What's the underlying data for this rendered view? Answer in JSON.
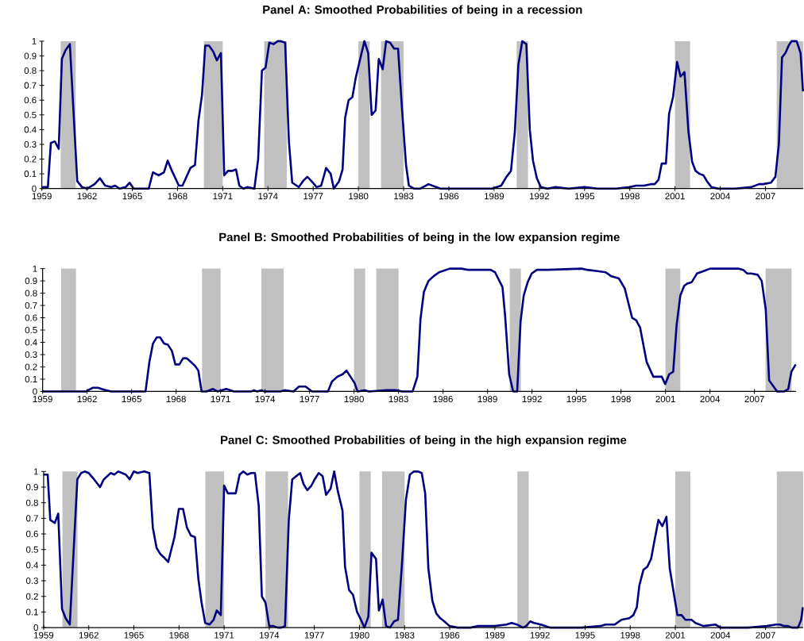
{
  "chart_data": [
    {
      "type": "line",
      "title": "Panel A: Smoothed Probabilities of being in a recession",
      "xlim": [
        1959,
        2009.5
      ],
      "ylim": [
        0,
        1
      ],
      "xticks": [
        1959,
        1962,
        1965,
        1968,
        1971,
        1974,
        1977,
        1980,
        1983,
        1986,
        1989,
        1992,
        1995,
        1998,
        2001,
        2004,
        2007
      ],
      "yticks": [
        0,
        0.1,
        0.2,
        0.3,
        0.4,
        0.5,
        0.6,
        0.7,
        0.8,
        0.9,
        1
      ],
      "bands": [
        {
          "axis": "x",
          "from": 1960.25,
          "to": 1961.25,
          "color": "#c0c0c0"
        },
        {
          "axis": "x",
          "from": 1969.75,
          "to": 1971.0,
          "color": "#c0c0c0"
        },
        {
          "axis": "x",
          "from": 1973.75,
          "to": 1975.25,
          "color": "#c0c0c0"
        },
        {
          "axis": "x",
          "from": 1980.0,
          "to": 1980.75,
          "color": "#c0c0c0"
        },
        {
          "axis": "x",
          "from": 1981.5,
          "to": 1983.0,
          "color": "#c0c0c0"
        },
        {
          "axis": "x",
          "from": 1990.5,
          "to": 1991.25,
          "color": "#c0c0c0"
        },
        {
          "axis": "x",
          "from": 2001.0,
          "to": 2002.0,
          "color": "#c0c0c0"
        },
        {
          "axis": "x",
          "from": 2007.75,
          "to": 2009.5,
          "color": "#c0c0c0"
        }
      ],
      "x": [
        1959.03,
        1959.4,
        1959.6,
        1959.86,
        1960.12,
        1960.33,
        1960.58,
        1960.86,
        1961.35,
        1961.67,
        1962.02,
        1962.5,
        1962.86,
        1963.2,
        1963.6,
        1963.86,
        1964.16,
        1964.56,
        1964.82,
        1965.09,
        1965.7,
        1966.09,
        1966.37,
        1966.75,
        1967.1,
        1967.35,
        1967.63,
        1968.09,
        1968.33,
        1968.86,
        1969.16,
        1969.39,
        1969.63,
        1969.84,
        1970.09,
        1970.37,
        1970.61,
        1970.88,
        1971.1,
        1971.35,
        1971.63,
        1971.88,
        1972.1,
        1972.37,
        1972.63,
        1973.1,
        1973.35,
        1973.6,
        1973.84,
        1974.09,
        1974.37,
        1974.65,
        1974.86,
        1975.14,
        1975.39,
        1975.61,
        1976.05,
        1976.32,
        1976.61,
        1976.89,
        1977.23,
        1977.53,
        1977.86,
        1978.16,
        1978.37,
        1978.72,
        1978.95,
        1979.12,
        1979.35,
        1979.6,
        1979.82,
        1980.05,
        1980.4,
        1980.65,
        1980.88,
        1981.14,
        1981.35,
        1981.61,
        1981.84,
        1982.1,
        1982.37,
        1982.63,
        1982.9,
        1983.16,
        1983.35,
        1983.68,
        1984.12,
        1984.65,
        1985.44,
        1986.93,
        1987.98,
        1988.86,
        1989.47,
        1989.82,
        1990.12,
        1990.38,
        1990.61,
        1990.87,
        1991.14,
        1991.37,
        1991.58,
        1991.84,
        1992.1,
        1992.54,
        1993.07,
        1993.95,
        1995.0,
        1995.87,
        1997.1,
        1997.98,
        1998.42,
        1998.95,
        1999.38,
        1999.65,
        1999.91,
        2000.12,
        2000.4,
        2000.61,
        2000.87,
        2001.14,
        2001.37,
        2001.63,
        2001.89,
        2002.14,
        2002.37,
        2002.63,
        2002.89,
        2003.12,
        2003.42,
        2003.86,
        2005.0,
        2006.05,
        2006.58,
        2006.84,
        2007.37,
        2007.66,
        2007.89,
        2008.1,
        2008.33,
        2008.54,
        2008.73,
        2009.07,
        2009.33,
        2009.49
      ],
      "series": [
        {
          "color": "#000080",
          "values": [
            0.01,
            0.01,
            0.31,
            0.32,
            0.27,
            0.88,
            0.94,
            0.98,
            0.05,
            0.01,
            0.0,
            0.03,
            0.07,
            0.02,
            0.01,
            0.02,
            0.0,
            0.01,
            0.04,
            0.0,
            0.0,
            0.0,
            0.11,
            0.09,
            0.11,
            0.19,
            0.12,
            0.02,
            0.02,
            0.14,
            0.16,
            0.46,
            0.64,
            0.97,
            0.97,
            0.93,
            0.87,
            0.92,
            0.09,
            0.12,
            0.12,
            0.13,
            0.02,
            0.0,
            0.01,
            0.0,
            0.2,
            0.8,
            0.82,
            0.99,
            0.98,
            1.0,
            1.0,
            0.99,
            0.32,
            0.04,
            0.01,
            0.05,
            0.08,
            0.05,
            0.01,
            0.02,
            0.14,
            0.1,
            0.0,
            0.05,
            0.13,
            0.48,
            0.6,
            0.62,
            0.75,
            0.85,
            1.0,
            0.92,
            0.5,
            0.53,
            0.88,
            0.81,
            1.0,
            0.99,
            0.95,
            0.95,
            0.53,
            0.16,
            0.02,
            0.0,
            0.0,
            0.03,
            0.0,
            0.0,
            0.0,
            0.0,
            0.02,
            0.08,
            0.12,
            0.39,
            0.84,
            1.0,
            0.98,
            0.4,
            0.19,
            0.07,
            0.01,
            0.0,
            0.01,
            0.0,
            0.01,
            0.0,
            0.0,
            0.01,
            0.02,
            0.02,
            0.03,
            0.03,
            0.06,
            0.17,
            0.17,
            0.51,
            0.62,
            0.86,
            0.76,
            0.79,
            0.39,
            0.18,
            0.12,
            0.1,
            0.09,
            0.05,
            0.01,
            0.0,
            0.0,
            0.01,
            0.03,
            0.03,
            0.04,
            0.08,
            0.3,
            0.89,
            0.92,
            0.97,
            1.0,
            1.0,
            0.92,
            0.66
          ]
        }
      ]
    },
    {
      "type": "line",
      "title": "Panel B: Smoothed Probabilities of being in the low expansion regime",
      "xlim": [
        1959,
        2009.8
      ],
      "ylim": [
        0,
        1
      ],
      "xticks": [
        1959,
        1962,
        1965,
        1968,
        1971,
        1974,
        1977,
        1980,
        1983,
        1986,
        1989,
        1992,
        1995,
        1998,
        2001,
        2004,
        2007
      ],
      "yticks": [
        0,
        0.1,
        0.2,
        0.3,
        0.4,
        0.5,
        0.6,
        0.7,
        0.8,
        0.9,
        1
      ],
      "bands": [
        {
          "axis": "x",
          "from": 1960.25,
          "to": 1961.25,
          "color": "#c0c0c0"
        },
        {
          "axis": "x",
          "from": 1969.75,
          "to": 1971.0,
          "color": "#c0c0c0"
        },
        {
          "axis": "x",
          "from": 1973.75,
          "to": 1975.25,
          "color": "#c0c0c0"
        },
        {
          "axis": "x",
          "from": 1980.0,
          "to": 1980.75,
          "color": "#c0c0c0"
        },
        {
          "axis": "x",
          "from": 1981.5,
          "to": 1983.0,
          "color": "#c0c0c0"
        },
        {
          "axis": "x",
          "from": 1990.5,
          "to": 1991.25,
          "color": "#c0c0c0"
        },
        {
          "axis": "x",
          "from": 2001.0,
          "to": 2002.0,
          "color": "#c0c0c0"
        },
        {
          "axis": "x",
          "from": 2007.75,
          "to": 2009.5,
          "color": "#c0c0c0"
        }
      ],
      "x": [
        1959.0,
        1960.94,
        1961.92,
        1962.37,
        1962.73,
        1963.26,
        1963.62,
        1965.94,
        1966.2,
        1966.44,
        1966.69,
        1966.92,
        1967.19,
        1967.45,
        1967.72,
        1967.95,
        1968.22,
        1968.47,
        1968.72,
        1969.0,
        1969.27,
        1969.5,
        1969.72,
        1970.04,
        1970.49,
        1970.79,
        1971.38,
        1971.91,
        1973.07,
        1973.25,
        1973.46,
        1973.75,
        1973.96,
        1975.03,
        1975.3,
        1975.92,
        1976.28,
        1976.73,
        1977.17,
        1978.24,
        1978.51,
        1978.87,
        1979.23,
        1979.49,
        1979.76,
        1980.03,
        1980.24,
        1980.74,
        1981.01,
        1982.17,
        1982.83,
        1983.24,
        1983.95,
        1984.27,
        1984.48,
        1984.71,
        1985.02,
        1985.38,
        1985.73,
        1986.45,
        1987.25,
        1987.69,
        1988.76,
        1989.21,
        1989.51,
        1990.01,
        1990.19,
        1990.46,
        1990.73,
        1991.0,
        1991.23,
        1991.44,
        1991.71,
        1991.98,
        1992.33,
        1993.04,
        1995.36,
        1995.72,
        1996.43,
        1996.97,
        1997.32,
        1997.86,
        1998.25,
        1998.54,
        1998.75,
        1999.02,
        1999.29,
        1999.73,
        2000.18,
        2000.75,
        2000.98,
        2001.25,
        2001.52,
        2001.75,
        2002.0,
        2002.26,
        2002.5,
        2002.77,
        2003.12,
        2003.57,
        2004.01,
        2005.89,
        2006.24,
        2006.51,
        2006.78,
        2007.22,
        2007.49,
        2007.76,
        2007.99,
        2008.53,
        2009.01,
        2009.28,
        2009.49,
        2009.78
      ],
      "series": [
        {
          "color": "#000080",
          "values": [
            0,
            0,
            0,
            0.03,
            0.03,
            0.01,
            0,
            0,
            0.24,
            0.39,
            0.44,
            0.44,
            0.39,
            0.38,
            0.33,
            0.22,
            0.22,
            0.27,
            0.27,
            0.24,
            0.21,
            0.17,
            0,
            0,
            0.02,
            0,
            0.02,
            0,
            0,
            0.01,
            0,
            0.01,
            0,
            0,
            0.01,
            0,
            0.04,
            0.04,
            0,
            0,
            0.08,
            0.12,
            0.14,
            0.17,
            0.12,
            0.07,
            0,
            0.01,
            0,
            0.01,
            0.01,
            0,
            0,
            0.12,
            0.59,
            0.81,
            0.9,
            0.94,
            0.97,
            1.0,
            1.0,
            0.99,
            0.99,
            0.99,
            0.97,
            0.85,
            0.61,
            0.14,
            0,
            0,
            0.57,
            0.78,
            0.89,
            0.96,
            0.99,
            0.99,
            1.0,
            0.99,
            0.98,
            0.97,
            0.94,
            0.92,
            0.84,
            0.7,
            0.6,
            0.58,
            0.52,
            0.24,
            0.12,
            0.12,
            0.06,
            0.14,
            0.16,
            0.54,
            0.78,
            0.86,
            0.88,
            0.89,
            0.96,
            0.98,
            1.0,
            1.0,
            0.99,
            0.96,
            0.96,
            0.95,
            0.9,
            0.67,
            0.09,
            0,
            0,
            0.02,
            0.16,
            0.22
          ]
        }
      ]
    },
    {
      "type": "line",
      "title": "Panel C: Smoothed Probabilities of being in the high expansion regime",
      "xlim": [
        1959,
        2009.5
      ],
      "ylim": [
        0,
        1
      ],
      "xticks": [
        1959,
        1962,
        1965,
        1968,
        1971,
        1974,
        1977,
        1980,
        1983,
        1986,
        1989,
        1992,
        1995,
        1998,
        2001,
        2004,
        2007
      ],
      "yticks": [
        0,
        0.1,
        0.2,
        0.3,
        0.4,
        0.5,
        0.6,
        0.7,
        0.8,
        0.9,
        1
      ],
      "bands": [
        {
          "axis": "x",
          "from": 1960.25,
          "to": 1961.25,
          "color": "#c0c0c0"
        },
        {
          "axis": "x",
          "from": 1969.75,
          "to": 1971.0,
          "color": "#c0c0c0"
        },
        {
          "axis": "x",
          "from": 1973.75,
          "to": 1975.25,
          "color": "#c0c0c0"
        },
        {
          "axis": "x",
          "from": 1980.0,
          "to": 1980.75,
          "color": "#c0c0c0"
        },
        {
          "axis": "x",
          "from": 1981.5,
          "to": 1983.0,
          "color": "#c0c0c0"
        },
        {
          "axis": "x",
          "from": 1990.5,
          "to": 1991.25,
          "color": "#c0c0c0"
        },
        {
          "axis": "x",
          "from": 2001.0,
          "to": 2002.0,
          "color": "#c0c0c0"
        },
        {
          "axis": "x",
          "from": 2007.75,
          "to": 2009.5,
          "color": "#c0c0c0"
        }
      ],
      "x": [
        1959.0,
        1959.27,
        1959.44,
        1959.74,
        1959.97,
        1960.22,
        1960.46,
        1960.74,
        1961.24,
        1961.49,
        1961.73,
        1962.0,
        1962.35,
        1962.75,
        1963.0,
        1963.46,
        1963.7,
        1963.97,
        1964.46,
        1964.72,
        1964.99,
        1965.25,
        1965.69,
        1966.03,
        1966.26,
        1966.51,
        1966.77,
        1967.0,
        1967.28,
        1967.7,
        1967.99,
        1968.27,
        1968.53,
        1968.79,
        1969.06,
        1969.29,
        1969.5,
        1969.74,
        1970.04,
        1970.3,
        1970.51,
        1970.78,
        1971.0,
        1971.25,
        1971.53,
        1971.77,
        1972.03,
        1972.28,
        1972.54,
        1972.8,
        1973.05,
        1973.3,
        1973.51,
        1973.75,
        1974.0,
        1974.28,
        1974.56,
        1974.82,
        1975.05,
        1975.3,
        1975.53,
        1975.79,
        1976.06,
        1976.28,
        1976.53,
        1976.81,
        1977.02,
        1977.29,
        1977.55,
        1977.78,
        1978.08,
        1978.32,
        1978.57,
        1978.87,
        1979.04,
        1979.31,
        1979.57,
        1979.84,
        1980.1,
        1980.33,
        1980.59,
        1980.8,
        1981.1,
        1981.29,
        1981.54,
        1981.77,
        1982.03,
        1982.3,
        1982.56,
        1982.82,
        1983.09,
        1983.35,
        1983.62,
        1983.88,
        1984.14,
        1984.37,
        1984.58,
        1984.85,
        1985.11,
        1985.37,
        1985.64,
        1985.99,
        1986.52,
        1987.39,
        1987.84,
        1988.1,
        1988.98,
        1989.77,
        1990.12,
        1990.47,
        1990.87,
        1991.09,
        1991.35,
        1991.61,
        1992.06,
        1992.67,
        1993.72,
        1994.78,
        1996.01,
        1996.36,
        1996.98,
        1997.42,
        1997.94,
        1998.21,
        1998.44,
        1998.61,
        1998.88,
        1999.14,
        1999.39,
        1999.62,
        1999.88,
        2000.14,
        2000.41,
        2000.63,
        2000.9,
        2001.14,
        2001.42,
        2001.67,
        2002.08,
        2002.34,
        2002.87,
        2003.66,
        2004.01,
        2005.86,
        2007.09,
        2007.7,
        2007.96,
        2008.23,
        2008.49,
        2008.75,
        2009.16,
        2009.37,
        2009.48
      ],
      "series": [
        {
          "color": "#000080",
          "values": [
            0.98,
            0.98,
            0.69,
            0.67,
            0.73,
            0.12,
            0.06,
            0.02,
            0.95,
            0.99,
            1.0,
            0.99,
            0.95,
            0.9,
            0.95,
            0.99,
            0.98,
            1.0,
            0.98,
            0.95,
            1.0,
            0.99,
            1.0,
            0.99,
            0.64,
            0.51,
            0.47,
            0.45,
            0.42,
            0.58,
            0.76,
            0.76,
            0.64,
            0.59,
            0.58,
            0.31,
            0.16,
            0.03,
            0.02,
            0.05,
            0.11,
            0.08,
            0.91,
            0.86,
            0.86,
            0.86,
            0.98,
            1.0,
            0.98,
            0.99,
            0.99,
            0.78,
            0.2,
            0.16,
            0.01,
            0.01,
            0.0,
            0.0,
            0.01,
            0.69,
            0.95,
            0.97,
            0.99,
            0.92,
            0.88,
            0.91,
            0.95,
            0.99,
            0.97,
            0.85,
            0.89,
            1.0,
            0.87,
            0.75,
            0.39,
            0.24,
            0.21,
            0.1,
            0.05,
            0.0,
            0.07,
            0.48,
            0.44,
            0.11,
            0.18,
            0.01,
            0.0,
            0.04,
            0.05,
            0.4,
            0.82,
            0.98,
            1.0,
            1.0,
            0.99,
            0.86,
            0.38,
            0.17,
            0.09,
            0.06,
            0.04,
            0.01,
            0,
            0,
            0.01,
            0.01,
            0.01,
            0.02,
            0.03,
            0.02,
            0,
            0.01,
            0.04,
            0.03,
            0.02,
            0,
            0,
            0,
            0.01,
            0.02,
            0.02,
            0.05,
            0.06,
            0.08,
            0.13,
            0.27,
            0.37,
            0.39,
            0.44,
            0.56,
            0.69,
            0.65,
            0.71,
            0.38,
            0.22,
            0.08,
            0.08,
            0.05,
            0.05,
            0.03,
            0.01,
            0.02,
            0,
            0,
            0.01,
            0.02,
            0.02,
            0.01,
            0.01,
            0,
            0,
            0.05,
            0.13
          ]
        }
      ]
    }
  ]
}
